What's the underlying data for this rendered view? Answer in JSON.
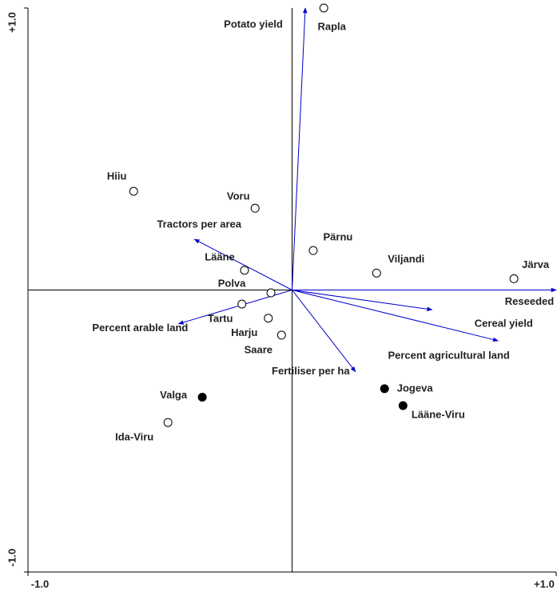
{
  "chart_data": {
    "type": "biplot",
    "points": {
      "labels": [
        "Rapla",
        "Hiiu",
        "Voru",
        "Pärnu",
        "Viljandi",
        "Järva",
        "Lääne",
        "Polva",
        "Tartu",
        "Harju",
        "Saare",
        "Valga",
        "Ida-Viru",
        "Jogeva",
        "Lääne-Viru"
      ],
      "x": [
        0.12,
        -0.6,
        -0.14,
        0.08,
        0.32,
        0.84,
        -0.18,
        -0.08,
        -0.19,
        -0.09,
        -0.04,
        -0.34,
        -0.47,
        0.35,
        0.42
      ],
      "y": [
        1.0,
        0.35,
        0.29,
        0.14,
        0.06,
        0.04,
        0.07,
        -0.01,
        -0.05,
        -0.1,
        -0.16,
        -0.38,
        -0.47,
        -0.35,
        -0.41
      ],
      "filled": [
        false,
        false,
        false,
        false,
        false,
        false,
        false,
        false,
        false,
        false,
        false,
        true,
        false,
        true,
        true
      ]
    },
    "vectors": {
      "labels": [
        "Potato yield",
        "Tractors per area",
        "Percent arable land",
        "Reseeded grassland",
        "Cereal yield",
        "Percent agricultural land",
        "Fertiliser per ha"
      ],
      "x": [
        0.05,
        -0.37,
        -0.43,
        1.0,
        0.78,
        0.53,
        0.24
      ],
      "y": [
        1.0,
        0.18,
        -0.12,
        0.0,
        -0.18,
        -0.07,
        -0.29
      ],
      "color": "#0000cc"
    },
    "xlim": [
      -1,
      1
    ],
    "ylim": [
      -1,
      1
    ],
    "xticks": [
      {
        "value": -1,
        "label": "-1.0"
      },
      {
        "value": 1,
        "label": "+1.0"
      }
    ],
    "yticks": [
      {
        "value": -1,
        "label": "-1.0"
      },
      {
        "value": 1,
        "label": "+1.0"
      }
    ]
  }
}
